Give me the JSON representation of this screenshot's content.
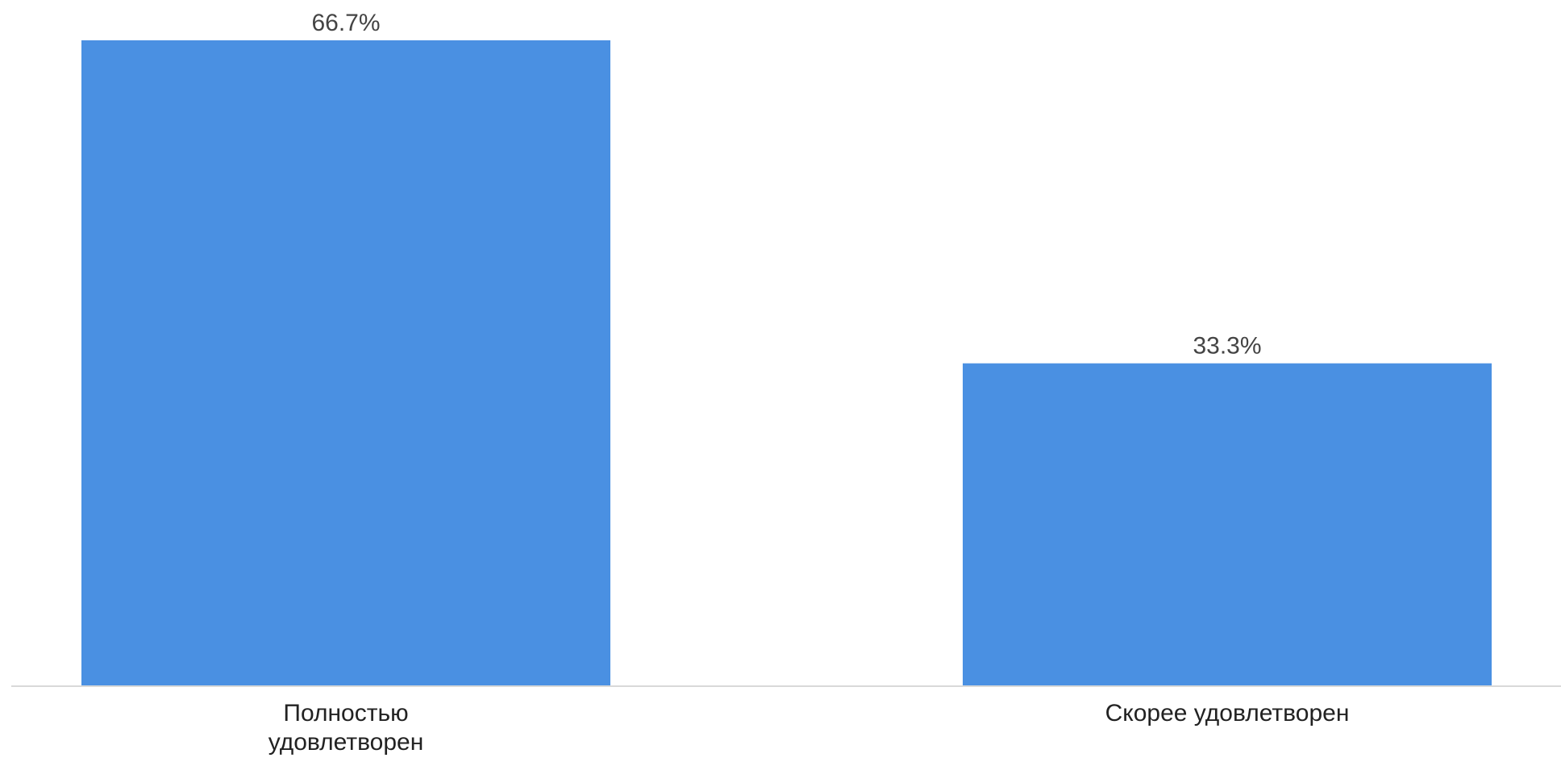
{
  "chart_data": {
    "type": "bar",
    "categories": [
      "Полностью удовлетворен",
      "Скорее удовлетворен"
    ],
    "category_lines": [
      [
        "Полностью",
        "удовлетворен"
      ],
      [
        "Скорее удовлетворен"
      ]
    ],
    "values": [
      66.7,
      33.3
    ],
    "value_labels": [
      "66.7%",
      "33.3%"
    ],
    "title": "",
    "xlabel": "",
    "ylabel": "",
    "ylim": [
      0,
      66.7
    ],
    "grid": false,
    "legend": "none"
  },
  "colors": {
    "bar": "#4a90e2",
    "axis": "#d9d9d9",
    "value_label": "#444444",
    "category_label": "#222222",
    "background": "#ffffff"
  }
}
